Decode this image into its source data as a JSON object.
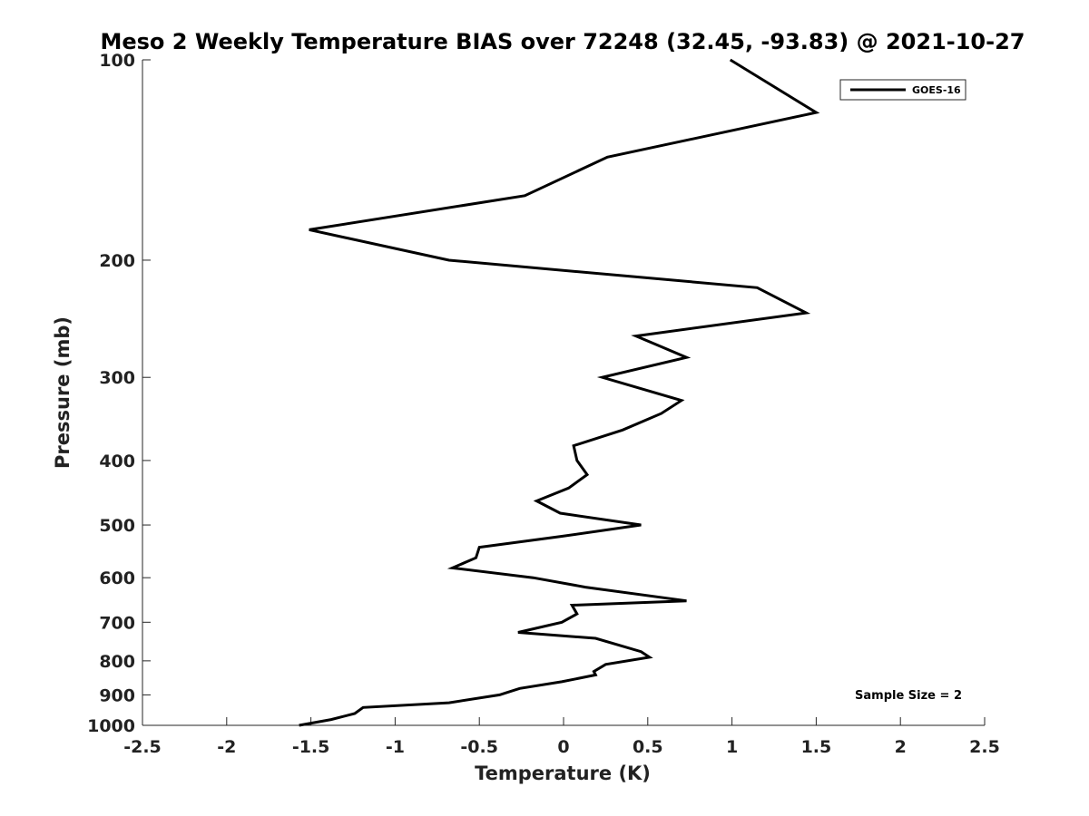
{
  "chart_data": {
    "type": "line",
    "title": "Meso 2 Weekly Temperature BIAS over 72248 (32.45, -93.83) @ 2021-10-27",
    "xlabel": "Temperature (K)",
    "ylabel": "Pressure (mb)",
    "xlim": [
      -2.5,
      2.5
    ],
    "ylim": [
      100,
      1000
    ],
    "yscale": "log",
    "y_reversed": true,
    "grid": false,
    "legend_position": "top-right",
    "xticks": [
      "-2.5",
      "-2",
      "-1.5",
      "-1",
      "-0.5",
      "0",
      "0.5",
      "1",
      "1.5",
      "2",
      "2.5"
    ],
    "xtick_values": [
      -2.5,
      -2,
      -1.5,
      -1,
      -0.5,
      0,
      0.5,
      1,
      1.5,
      2,
      2.5
    ],
    "yticks": [
      "100",
      "200",
      "300",
      "400",
      "500",
      "600",
      "700",
      "800",
      "900",
      "1000"
    ],
    "ytick_values": [
      100,
      200,
      300,
      400,
      500,
      600,
      700,
      800,
      900,
      1000
    ],
    "annotation": "Sample Size = 2",
    "series": [
      {
        "name": "GOES-16",
        "color": "#000000",
        "points": [
          [
            0.99,
            100
          ],
          [
            1.5,
            120
          ],
          [
            0.26,
            140
          ],
          [
            -0.23,
            160
          ],
          [
            -1.51,
            180
          ],
          [
            -0.68,
            200
          ],
          [
            1.15,
            220
          ],
          [
            1.44,
            240
          ],
          [
            0.43,
            260
          ],
          [
            0.73,
            280
          ],
          [
            0.23,
            300
          ],
          [
            0.7,
            325
          ],
          [
            0.58,
            340
          ],
          [
            0.35,
            360
          ],
          [
            0.06,
            380
          ],
          [
            0.08,
            400
          ],
          [
            0.14,
            420
          ],
          [
            0.03,
            440
          ],
          [
            -0.16,
            460
          ],
          [
            -0.02,
            480
          ],
          [
            0.46,
            500
          ],
          [
            -0.01,
            520
          ],
          [
            -0.5,
            540
          ],
          [
            -0.52,
            560
          ],
          [
            -0.66,
            580
          ],
          [
            -0.18,
            600
          ],
          [
            0.13,
            620
          ],
          [
            0.73,
            650
          ],
          [
            0.05,
            660
          ],
          [
            0.08,
            680
          ],
          [
            -0.01,
            700
          ],
          [
            -0.27,
            725
          ],
          [
            0.19,
            740
          ],
          [
            0.46,
            775
          ],
          [
            0.51,
            790
          ],
          [
            0.25,
            810
          ],
          [
            0.18,
            830
          ],
          [
            0.19,
            840
          ],
          [
            -0.01,
            860
          ],
          [
            -0.26,
            880
          ],
          [
            -0.38,
            900
          ],
          [
            -0.68,
            925
          ],
          [
            -1.19,
            940
          ],
          [
            -1.24,
            960
          ],
          [
            -1.38,
            980
          ],
          [
            -1.57,
            1000
          ]
        ]
      }
    ]
  }
}
